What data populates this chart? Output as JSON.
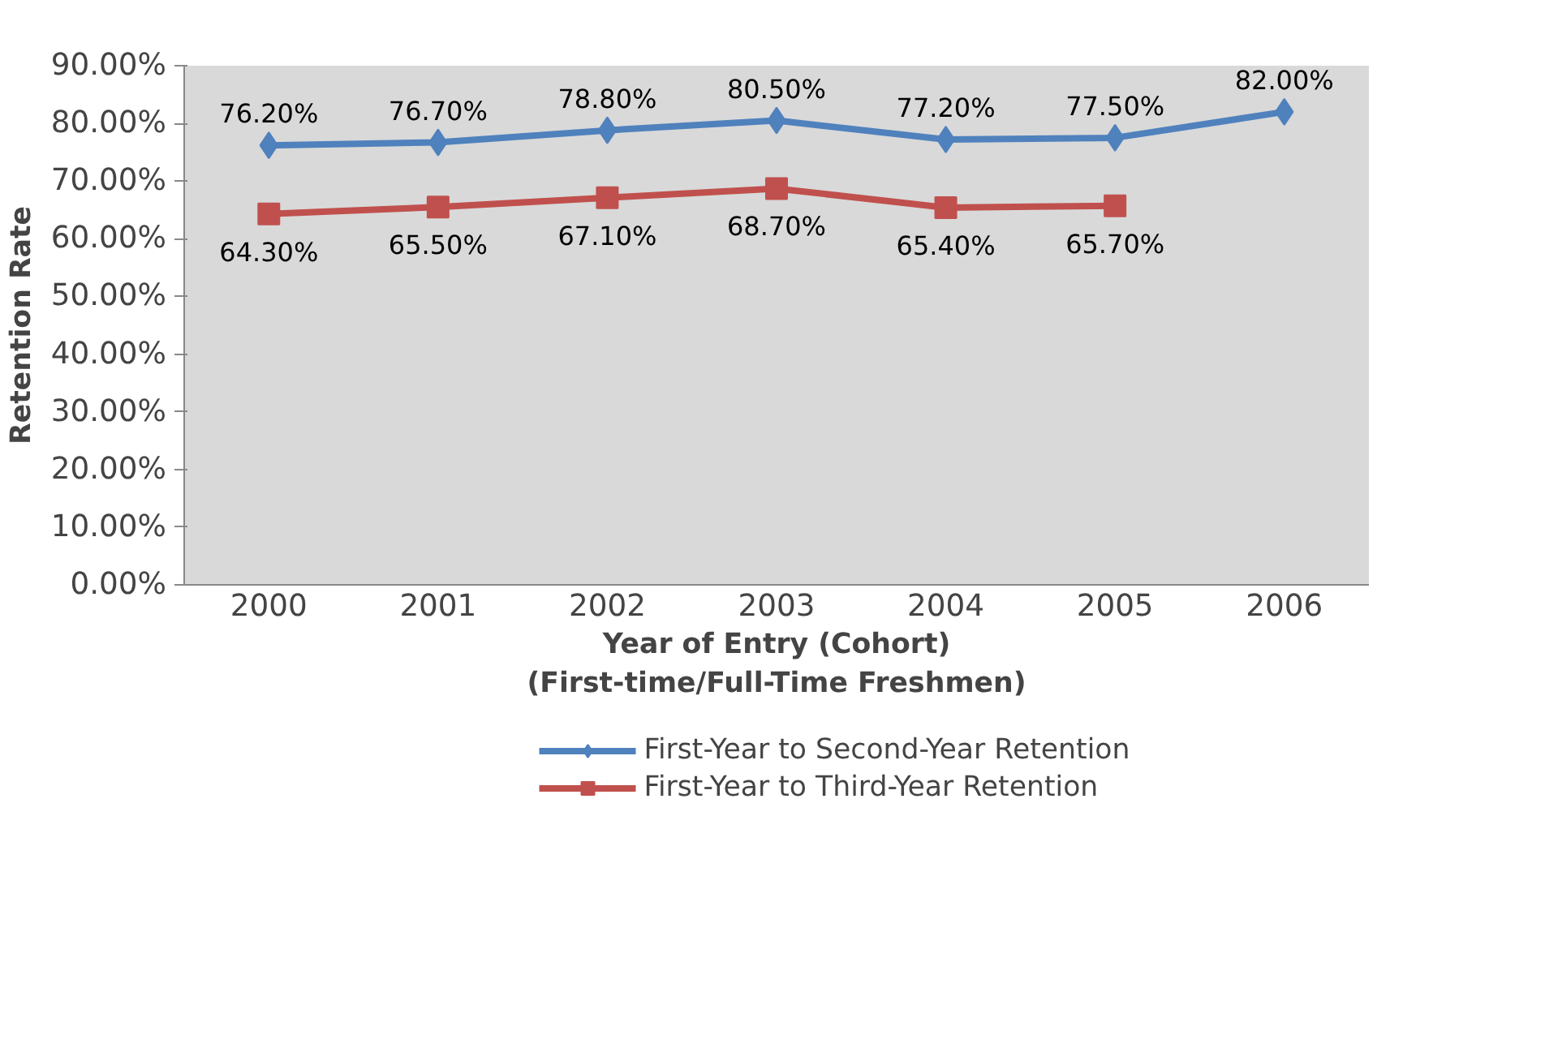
{
  "chart_data": {
    "type": "line",
    "xlabel": "Year of Entry (Cohort)\n(First-time/Full-Time Freshmen)",
    "ylabel": "Retention Rate",
    "categories": [
      "2000",
      "2001",
      "2002",
      "2003",
      "2004",
      "2005",
      "2006"
    ],
    "ylim": [
      0,
      90
    ],
    "yticks": [
      {
        "value": 0,
        "label": "0.00%"
      },
      {
        "value": 10,
        "label": "10.00%"
      },
      {
        "value": 20,
        "label": "20.00%"
      },
      {
        "value": 30,
        "label": "30.00%"
      },
      {
        "value": 40,
        "label": "40.00%"
      },
      {
        "value": 50,
        "label": "50.00%"
      },
      {
        "value": 60,
        "label": "60.00%"
      },
      {
        "value": 70,
        "label": "70.00%"
      },
      {
        "value": 80,
        "label": "80.00%"
      },
      {
        "value": 90,
        "label": "90.00%"
      }
    ],
    "grid": false,
    "legend": "bottom",
    "line_style": "solid",
    "series": [
      {
        "name": "First-Year to Second-Year Retention",
        "color": "#4f81bd",
        "marker": "diamond",
        "values": [
          76.2,
          76.7,
          78.8,
          80.5,
          77.2,
          77.5,
          82.0
        ],
        "value_labels": [
          "76.20%",
          "76.70%",
          "78.80%",
          "80.50%",
          "77.20%",
          "77.50%",
          "82.00%"
        ]
      },
      {
        "name": "First-Year to Third-Year Retention",
        "color": "#c0504d",
        "marker": "square",
        "values": [
          64.3,
          65.5,
          67.1,
          68.7,
          65.4,
          65.7,
          null
        ],
        "value_labels": [
          "64.30%",
          "65.50%",
          "67.10%",
          "68.70%",
          "65.40%",
          "65.70%",
          null
        ]
      }
    ]
  }
}
